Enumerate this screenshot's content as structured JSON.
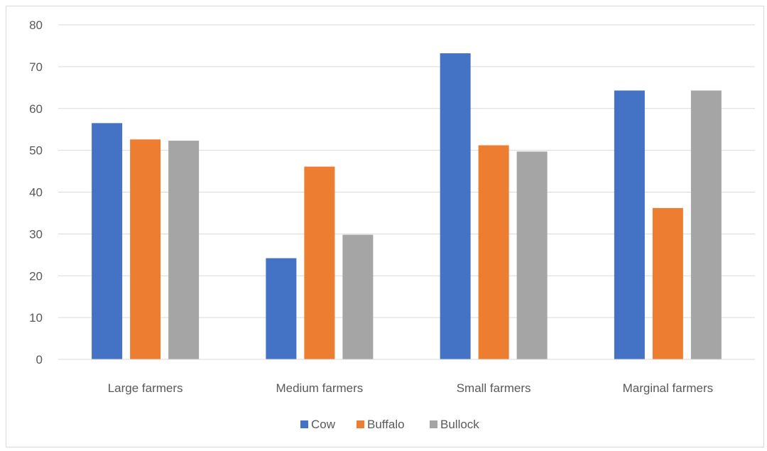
{
  "chart_data": {
    "type": "bar",
    "title": "",
    "xlabel": "",
    "ylabel": "",
    "ylim": [
      0,
      80
    ],
    "yticks": [
      0,
      10,
      20,
      30,
      40,
      50,
      60,
      70,
      80
    ],
    "grid": true,
    "legend_position": "bottom",
    "categories": [
      "Large farmers",
      "Medium farmers",
      "Small farmers",
      "Marginal farmers"
    ],
    "series": [
      {
        "name": "Cow",
        "color": "#4472c4",
        "values": [
          56.5,
          24.2,
          73.2,
          64.3
        ]
      },
      {
        "name": "Buffalo",
        "color": "#ed7d31",
        "values": [
          52.6,
          46.1,
          51.2,
          36.2
        ]
      },
      {
        "name": "Bullock",
        "color": "#a5a5a5",
        "values": [
          52.3,
          29.8,
          49.7,
          64.3
        ]
      }
    ]
  }
}
